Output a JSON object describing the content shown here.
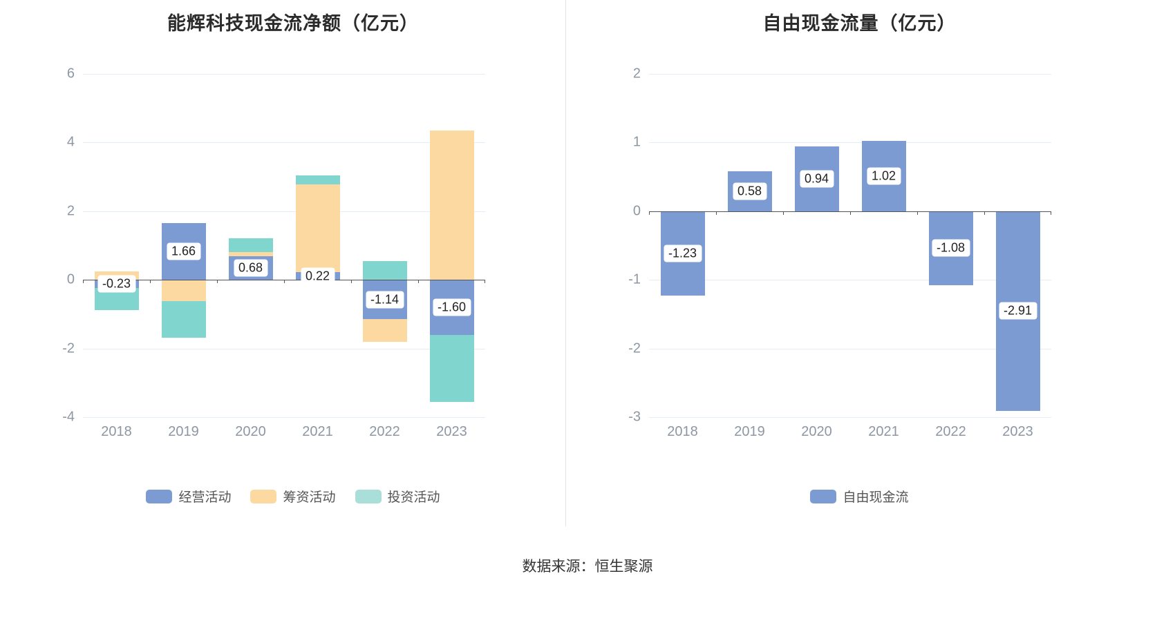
{
  "source": "数据来源：恒生聚源",
  "colors": {
    "operating_blue": "#7b9bd2",
    "financing_orange": "#fbd9a0",
    "investing_teal": "#80d5cf",
    "gridline": "#e4ecf5",
    "zero_axis": "#4f545a",
    "axis_text": "#8d97a4"
  },
  "chart_data": [
    {
      "type": "bar",
      "stacked": true,
      "title": "能辉科技现金流净额（亿元）",
      "categories": [
        "2018",
        "2019",
        "2020",
        "2021",
        "2022",
        "2023"
      ],
      "ylim": [
        -4,
        6
      ],
      "yticks": [
        6,
        4,
        2,
        0,
        -2,
        -4
      ],
      "grid": true,
      "legend_position": "bottom",
      "series": [
        {
          "key": "operating",
          "name": "经营活动",
          "color": "#7b9bd2",
          "values": [
            -0.23,
            1.66,
            0.68,
            0.22,
            -1.14,
            -1.6
          ],
          "labels": [
            "-0.23",
            "1.66",
            "0.68",
            "0.22",
            "-1.14",
            "-1.60"
          ]
        },
        {
          "key": "financing",
          "name": "筹资活动",
          "color": "#fbd9a0",
          "values": [
            0.25,
            -0.62,
            0.13,
            2.56,
            -0.66,
            4.35
          ]
        },
        {
          "key": "investing",
          "name": "投资活动",
          "color": "#80d5cf",
          "legend_color": "#a9ded9",
          "values": [
            -0.66,
            -1.06,
            0.4,
            0.26,
            0.55,
            -1.95
          ]
        }
      ]
    },
    {
      "type": "bar",
      "stacked": false,
      "title": "自由现金流量（亿元）",
      "categories": [
        "2018",
        "2019",
        "2020",
        "2021",
        "2022",
        "2023"
      ],
      "ylim": [
        -3,
        2
      ],
      "yticks": [
        2,
        1,
        0,
        -1,
        -2,
        -3
      ],
      "grid": true,
      "legend_position": "bottom",
      "series": [
        {
          "key": "free-cash-flow",
          "name": "自由现金流",
          "color": "#7b9bd2",
          "values": [
            -1.23,
            0.58,
            0.94,
            1.02,
            -1.08,
            -2.91
          ],
          "labels": [
            "-1.23",
            "0.58",
            "0.94",
            "1.02",
            "-1.08",
            "-2.91"
          ]
        }
      ]
    }
  ]
}
